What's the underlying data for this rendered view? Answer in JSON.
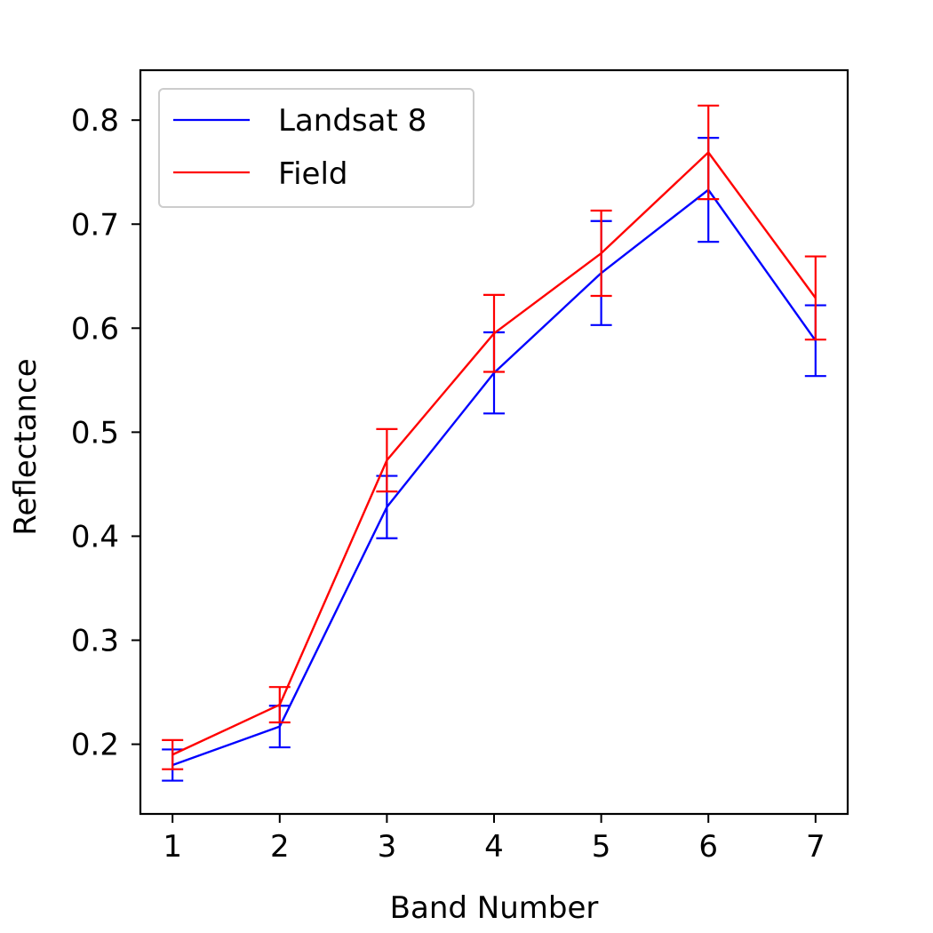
{
  "chart_data": {
    "type": "line",
    "xlabel": "Band Number",
    "ylabel": "Reflectance",
    "x": [
      1,
      2,
      3,
      4,
      5,
      6,
      7
    ],
    "xticks": [
      "1",
      "2",
      "3",
      "4",
      "5",
      "6",
      "7"
    ],
    "yticks": [
      "0.2",
      "0.3",
      "0.4",
      "0.5",
      "0.6",
      "0.7",
      "0.8"
    ],
    "xlim": [
      0.7,
      7.3
    ],
    "ylim": [
      0.133,
      0.848
    ],
    "grid": false,
    "legend_position": "upper-left",
    "series": [
      {
        "name": "Landsat 8",
        "color": "#0000ff",
        "values": [
          0.18,
          0.217,
          0.428,
          0.557,
          0.653,
          0.733,
          0.588
        ],
        "error": [
          0.015,
          0.02,
          0.03,
          0.039,
          0.05,
          0.05,
          0.034
        ]
      },
      {
        "name": "Field",
        "color": "#ff0000",
        "values": [
          0.19,
          0.238,
          0.473,
          0.595,
          0.672,
          0.769,
          0.629
        ],
        "error": [
          0.014,
          0.017,
          0.03,
          0.037,
          0.041,
          0.045,
          0.04
        ]
      }
    ]
  }
}
